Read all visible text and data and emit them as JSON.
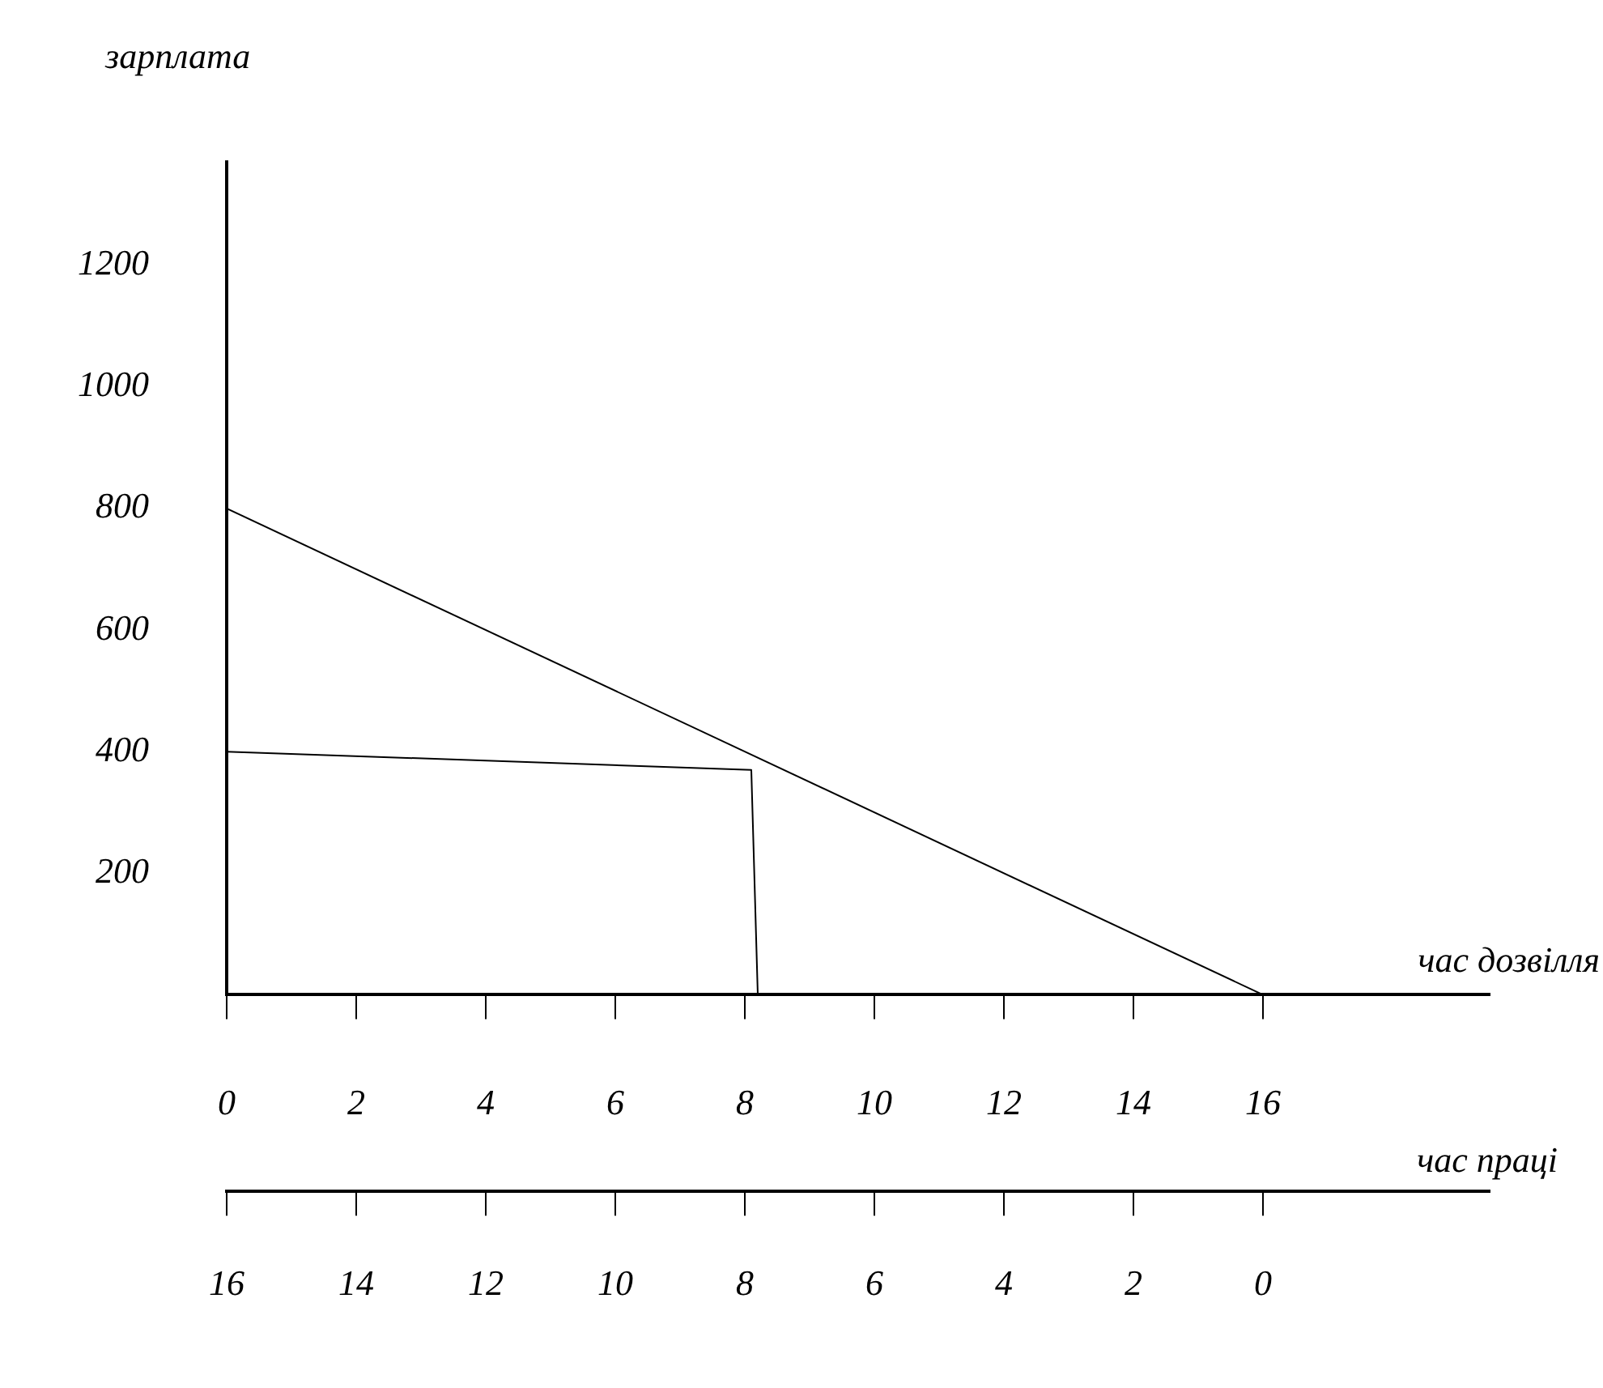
{
  "chart_data": {
    "type": "line",
    "ylabel": "зарплата",
    "xlabel": "час дозвілля",
    "x2label": "час праці",
    "xlim": [
      0,
      19.5
    ],
    "xticks": [
      0,
      2,
      4,
      6,
      8,
      10,
      12,
      14,
      16
    ],
    "x2lim": [
      16,
      -3.5
    ],
    "x2ticks": [
      16,
      14,
      12,
      10,
      8,
      6,
      4,
      2,
      0
    ],
    "ylim": [
      0,
      1370
    ],
    "yticks": [
      200,
      400,
      600,
      800,
      1000,
      1200
    ],
    "series": [
      {
        "color": "#000000",
        "x": [
          0,
          16
        ],
        "values": [
          800,
          0
        ]
      },
      {
        "color": "#000000",
        "x": [
          0,
          8.1,
          8.2
        ],
        "values": [
          400,
          370,
          0
        ]
      }
    ],
    "grid": false,
    "legend": false,
    "marker": "none",
    "line_style": "solid"
  }
}
